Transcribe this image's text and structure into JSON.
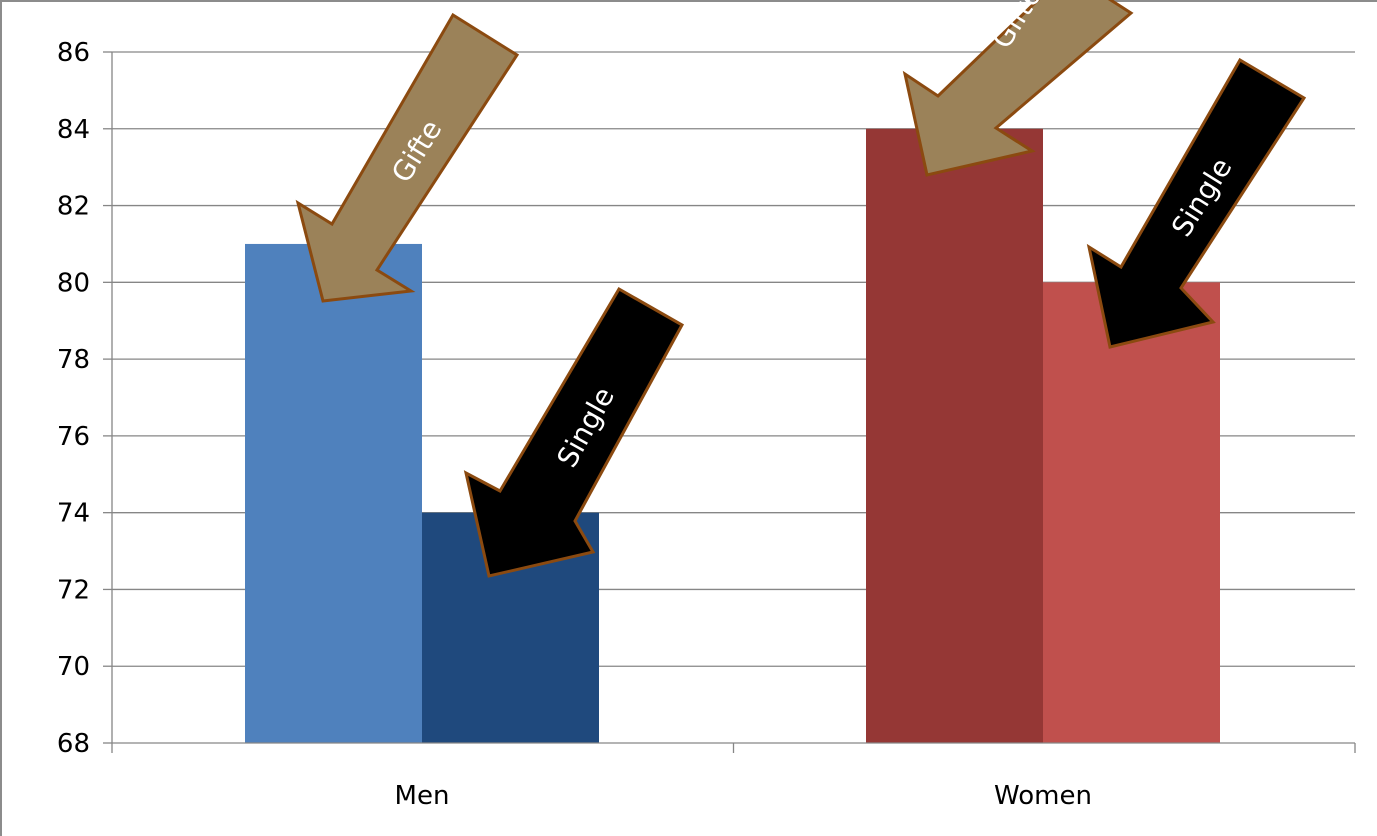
{
  "chart_data": {
    "type": "bar",
    "categories": [
      "Men",
      "Women"
    ],
    "groups": [
      {
        "category": "Men",
        "bars": [
          {
            "value": 81,
            "color": "#4f81bd"
          },
          {
            "value": 74,
            "color": "#1f497d"
          }
        ]
      },
      {
        "category": "Women",
        "bars": [
          {
            "value": 84,
            "color": "#953735"
          },
          {
            "value": 80,
            "color": "#c0504d"
          }
        ]
      }
    ],
    "ylim": [
      68,
      86
    ],
    "yticks": [
      86,
      84,
      82,
      80,
      78,
      76,
      74,
      72,
      70,
      68
    ],
    "ytick_labels": [
      "86",
      "84",
      "82",
      "80",
      "78",
      "76",
      "74",
      "72",
      "70",
      "68"
    ],
    "grid": true,
    "title": "",
    "xlabel": "",
    "ylabel": "",
    "annotations": [
      {
        "text": "Gifte",
        "points_to": "Men",
        "fill": "#9b8259",
        "border": "#8b4a10"
      },
      {
        "text": "Single",
        "points_to": "Men",
        "fill": "#000000",
        "border": "#8b4a10"
      },
      {
        "text": "Gifte",
        "points_to": "Women",
        "fill": "#9b8259",
        "border": "#8b4a10"
      },
      {
        "text": "Single",
        "points_to": "Women",
        "fill": "#000000",
        "border": "#8b4a10"
      }
    ],
    "colors": {
      "gridline": "#868686",
      "axis": "#868686",
      "frame": "#8c8c8c"
    }
  }
}
